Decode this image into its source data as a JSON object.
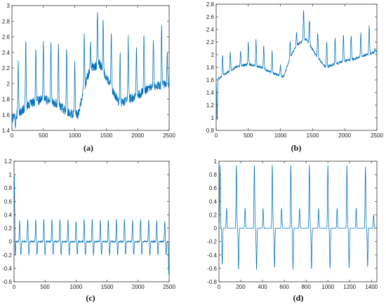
{
  "panels": [
    {
      "caption": "(a)"
    },
    {
      "caption": "(b)"
    },
    {
      "caption": "(c)"
    },
    {
      "caption": "(d)"
    }
  ],
  "chart_data": [
    {
      "type": "line",
      "label": "(a)",
      "color": "#0072bd",
      "xlim": [
        0,
        2500
      ],
      "ylim": [
        1.4,
        3.0
      ],
      "xticks": [
        0,
        500,
        1000,
        1500,
        2000,
        2500
      ],
      "yticks": [
        1.4,
        1.6,
        1.8,
        2.0,
        2.2,
        2.4,
        2.6,
        2.8,
        3.0
      ],
      "ytick_labels": [
        "1.4",
        "1.6",
        "1.8",
        "2",
        "2.2",
        "2.4",
        "2.6",
        "2.8",
        "3"
      ],
      "grid": false,
      "baseline": [
        [
          0,
          1.55
        ],
        [
          150,
          1.65
        ],
        [
          300,
          1.75
        ],
        [
          500,
          1.8
        ],
        [
          700,
          1.75
        ],
        [
          900,
          1.62
        ],
        [
          1050,
          1.6
        ],
        [
          1150,
          1.95
        ],
        [
          1250,
          2.2
        ],
        [
          1400,
          2.25
        ],
        [
          1550,
          2.0
        ],
        [
          1700,
          1.75
        ],
        [
          1850,
          1.8
        ],
        [
          2000,
          1.85
        ],
        [
          2200,
          1.95
        ],
        [
          2500,
          2.0
        ]
      ],
      "peaks": [
        [
          100,
          2.3
        ],
        [
          220,
          2.52
        ],
        [
          380,
          2.45
        ],
        [
          500,
          2.55
        ],
        [
          620,
          2.55
        ],
        [
          740,
          2.5
        ],
        [
          870,
          2.48
        ],
        [
          1000,
          2.35
        ],
        [
          1150,
          2.6
        ],
        [
          1250,
          2.5
        ],
        [
          1360,
          2.95
        ],
        [
          1450,
          2.8
        ],
        [
          1580,
          2.65
        ],
        [
          1720,
          2.4
        ],
        [
          1850,
          2.6
        ],
        [
          1980,
          2.5
        ],
        [
          2100,
          2.62
        ],
        [
          2250,
          2.55
        ],
        [
          2380,
          2.72
        ],
        [
          2470,
          2.4
        ]
      ],
      "troughs": [
        [
          60,
          1.45
        ],
        [
          1000,
          1.52
        ]
      ],
      "noise": 0.06
    },
    {
      "type": "line",
      "label": "(b)",
      "color": "#0072bd",
      "xlim": [
        0,
        2500
      ],
      "ylim": [
        0.8,
        2.8
      ],
      "xticks": [
        0,
        500,
        1000,
        1500,
        2000,
        2500
      ],
      "yticks": [
        0.8,
        1.0,
        1.2,
        1.4,
        1.6,
        1.8,
        2.0,
        2.2,
        2.4,
        2.6,
        2.8
      ],
      "ytick_labels": [
        "0.8",
        "1",
        "1.2",
        "1.4",
        "1.6",
        "1.8",
        "2",
        "2.2",
        "2.4",
        "2.6",
        "2.8"
      ],
      "grid": false,
      "baseline": [
        [
          0,
          1.6
        ],
        [
          150,
          1.7
        ],
        [
          300,
          1.8
        ],
        [
          500,
          1.85
        ],
        [
          700,
          1.8
        ],
        [
          900,
          1.7
        ],
        [
          1050,
          1.65
        ],
        [
          1150,
          1.95
        ],
        [
          1250,
          2.15
        ],
        [
          1400,
          2.25
        ],
        [
          1550,
          2.0
        ],
        [
          1700,
          1.8
        ],
        [
          1850,
          1.85
        ],
        [
          2000,
          1.9
        ],
        [
          2200,
          1.95
        ],
        [
          2500,
          2.05
        ]
      ],
      "peaks": [
        [
          100,
          2.0
        ],
        [
          220,
          2.05
        ],
        [
          380,
          2.05
        ],
        [
          500,
          2.2
        ],
        [
          620,
          2.25
        ],
        [
          740,
          2.15
        ],
        [
          870,
          2.05
        ],
        [
          1000,
          1.95
        ],
        [
          1150,
          2.2
        ],
        [
          1250,
          2.35
        ],
        [
          1360,
          2.7
        ],
        [
          1450,
          2.55
        ],
        [
          1580,
          2.35
        ],
        [
          1720,
          2.2
        ],
        [
          1850,
          2.25
        ],
        [
          1980,
          2.3
        ],
        [
          2100,
          2.3
        ],
        [
          2250,
          2.35
        ],
        [
          2380,
          2.45
        ],
        [
          2470,
          2.1
        ]
      ],
      "troughs": [
        [
          15,
          0.95
        ],
        [
          1000,
          1.55
        ]
      ],
      "noise": 0.02
    },
    {
      "type": "line",
      "label": "(c)",
      "color": "#0072bd",
      "xlim": [
        0,
        2500
      ],
      "ylim": [
        -0.6,
        1.2
      ],
      "xticks": [
        0,
        500,
        1000,
        1500,
        2000,
        2500
      ],
      "yticks": [
        -0.6,
        -0.4,
        -0.2,
        0,
        0.2,
        0.4,
        0.6,
        0.8,
        1.0,
        1.2
      ],
      "ytick_labels": [
        "-0.6",
        "-0.4",
        "-0.2",
        "0",
        "0.2",
        "0.4",
        "0.6",
        "0.8",
        "1",
        "1.2"
      ],
      "grid": false,
      "baseline": [
        [
          0,
          0.0
        ],
        [
          2500,
          0.0
        ]
      ],
      "peaks": [
        [
          5,
          1.0
        ],
        [
          90,
          0.32
        ],
        [
          220,
          0.33
        ],
        [
          350,
          0.33
        ],
        [
          480,
          0.33
        ],
        [
          610,
          0.33
        ],
        [
          740,
          0.33
        ],
        [
          870,
          0.33
        ],
        [
          1000,
          0.3
        ],
        [
          1130,
          0.33
        ],
        [
          1260,
          0.33
        ],
        [
          1390,
          0.33
        ],
        [
          1520,
          0.33
        ],
        [
          1650,
          0.33
        ],
        [
          1780,
          0.33
        ],
        [
          1910,
          0.32
        ],
        [
          2040,
          0.33
        ],
        [
          2170,
          0.33
        ],
        [
          2300,
          0.31
        ],
        [
          2430,
          0.3
        ]
      ],
      "troughs": [
        [
          20,
          -0.22
        ],
        [
          110,
          -0.2
        ],
        [
          240,
          -0.2
        ],
        [
          370,
          -0.2
        ],
        [
          500,
          -0.2
        ],
        [
          630,
          -0.2
        ],
        [
          760,
          -0.2
        ],
        [
          890,
          -0.2
        ],
        [
          1020,
          -0.2
        ],
        [
          1150,
          -0.2
        ],
        [
          1280,
          -0.2
        ],
        [
          1410,
          -0.2
        ],
        [
          1540,
          -0.2
        ],
        [
          1670,
          -0.2
        ],
        [
          1800,
          -0.2
        ],
        [
          1930,
          -0.2
        ],
        [
          2060,
          -0.2
        ],
        [
          2190,
          -0.2
        ],
        [
          2320,
          -0.2
        ],
        [
          2450,
          -0.2
        ],
        [
          2495,
          -0.48
        ]
      ],
      "noise": 0.01
    },
    {
      "type": "line",
      "label": "(d)",
      "color": "#0072bd",
      "xlim": [
        0,
        1450
      ],
      "ylim": [
        -0.8,
        1.0
      ],
      "xticks": [
        0,
        200,
        400,
        600,
        800,
        1000,
        1200,
        1400
      ],
      "yticks": [
        -0.8,
        -0.6,
        -0.4,
        -0.2,
        0,
        0.2,
        0.4,
        0.6,
        0.8,
        1.0
      ],
      "ytick_labels": [
        "-0.8",
        "-0.6",
        "-0.4",
        "-0.2",
        "0",
        "0.2",
        "0.4",
        "0.6",
        "0.8",
        "1"
      ],
      "grid": false,
      "baseline": [
        [
          0,
          0.0
        ],
        [
          1450,
          0.0
        ]
      ],
      "peaks": [
        [
          10,
          0.95
        ],
        [
          70,
          0.3
        ],
        [
          160,
          0.95
        ],
        [
          240,
          0.3
        ],
        [
          325,
          0.95
        ],
        [
          405,
          0.3
        ],
        [
          490,
          0.95
        ],
        [
          575,
          0.3
        ],
        [
          660,
          0.95
        ],
        [
          740,
          0.3
        ],
        [
          830,
          0.95
        ],
        [
          915,
          0.3
        ],
        [
          1000,
          0.95
        ],
        [
          1085,
          0.3
        ],
        [
          1175,
          0.95
        ],
        [
          1260,
          0.3
        ],
        [
          1345,
          0.92
        ],
        [
          1420,
          0.2
        ]
      ],
      "troughs": [
        [
          30,
          -0.55
        ],
        [
          180,
          -0.62
        ],
        [
          345,
          -0.62
        ],
        [
          510,
          -0.6
        ],
        [
          680,
          -0.62
        ],
        [
          850,
          -0.62
        ],
        [
          1020,
          -0.6
        ],
        [
          1195,
          -0.6
        ],
        [
          1365,
          -0.58
        ]
      ],
      "noise": 0.0
    }
  ]
}
